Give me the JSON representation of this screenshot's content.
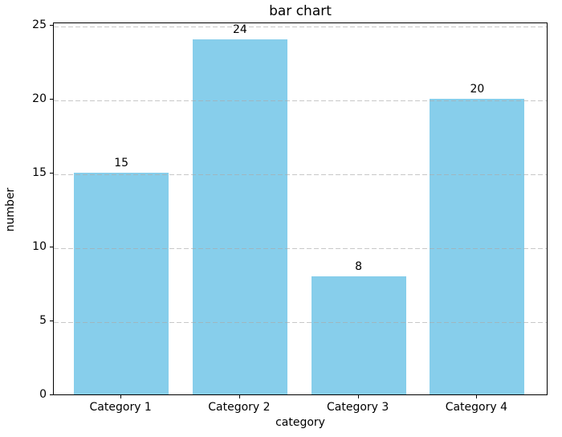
{
  "chart_data": {
    "type": "bar",
    "title": "bar chart",
    "xlabel": "category",
    "ylabel": "number",
    "categories": [
      "Category 1",
      "Category 2",
      "Category 3",
      "Category 4"
    ],
    "values": [
      15,
      24,
      8,
      20
    ],
    "value_labels": [
      "15",
      "24",
      "8",
      "20"
    ],
    "yticks": [
      0,
      5,
      10,
      15,
      20,
      25
    ],
    "ytick_labels": [
      "0",
      "5",
      "10",
      "15",
      "20",
      "25"
    ],
    "ylim": [
      0,
      25.2
    ],
    "xlim": [
      -0.57,
      3.6
    ],
    "bar_width_units": 0.8,
    "bar_color": "#87ceeb",
    "grid": {
      "axis": "y",
      "linestyle": "dashed",
      "color": "#aaaaaa",
      "alpha": 0.65
    },
    "legend": null,
    "background_color": "#ffffff",
    "spine_color": "#000000",
    "text_color": "#000000"
  }
}
